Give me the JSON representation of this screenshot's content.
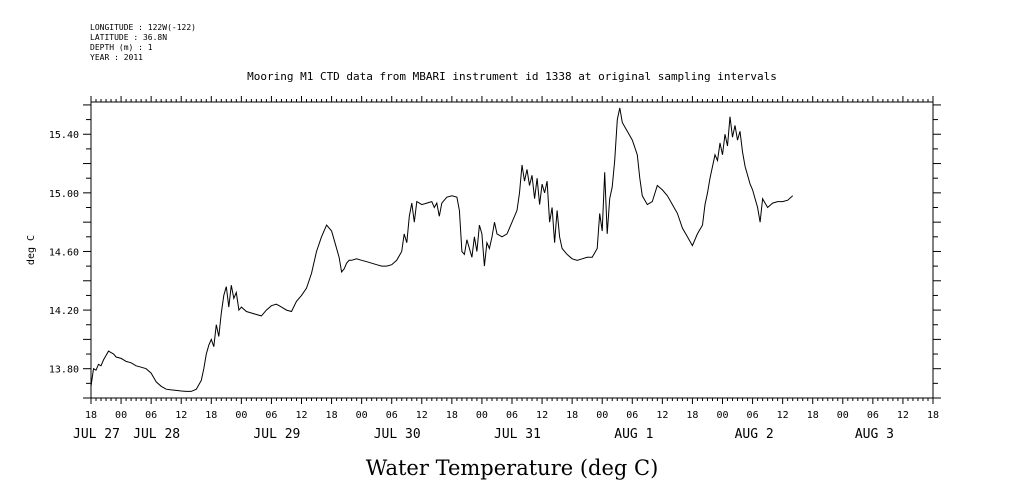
{
  "header": {
    "meta_lines": [
      "LONGITUDE : 122W(-122)",
      "LATITUDE : 36.8N",
      "DEPTH (m) : 1",
      "YEAR : 2011"
    ],
    "title": "Mooring M1 CTD data from MBARI instrument id 1338 at original sampling intervals"
  },
  "chart_data": {
    "type": "line",
    "title": "Mooring M1 CTD data from MBARI instrument id 1338 at original sampling intervals",
    "xlabel": "Water Temperature (deg C)",
    "ylabel": "deg C",
    "x_unit": "hours since 2011-07-27 18:00",
    "xlim": [
      0,
      168
    ],
    "ylim": [
      13.6,
      15.62
    ],
    "y_ticks": [
      13.8,
      14.2,
      14.6,
      15.0,
      15.4
    ],
    "y_tick_labels": [
      "13.80",
      "14.20",
      "14.60",
      "15.00",
      "15.40"
    ],
    "x_ticks": [
      0,
      6,
      12,
      18,
      24,
      30,
      36,
      42,
      48,
      54,
      60,
      66,
      72,
      78,
      84,
      90,
      96,
      102,
      108,
      114,
      120,
      126,
      132,
      138,
      144,
      150,
      156,
      162,
      168
    ],
    "x_tick_labels": [
      "18",
      "00",
      "06",
      "12",
      "18",
      "00",
      "06",
      "12",
      "18",
      "00",
      "06",
      "12",
      "18",
      "00",
      "06",
      "12",
      "18",
      "00",
      "06",
      "12",
      "18",
      "00",
      "06",
      "12",
      "18",
      "00",
      "06",
      "12",
      "18"
    ],
    "date_labels": [
      {
        "x": 0,
        "label": "JUL 27"
      },
      {
        "x": 12,
        "label": "JUL 28"
      },
      {
        "x": 36,
        "label": "JUL 29"
      },
      {
        "x": 60,
        "label": "JUL 30"
      },
      {
        "x": 84,
        "label": "JUL 31"
      },
      {
        "x": 108,
        "label": "AUG  1"
      },
      {
        "x": 132,
        "label": "AUG  2"
      },
      {
        "x": 156,
        "label": "AUG  3"
      }
    ],
    "series": [
      {
        "values": [
          [
            0,
            13.68
          ],
          [
            0.5,
            13.8
          ],
          [
            1,
            13.79
          ],
          [
            1.5,
            13.83
          ],
          [
            2,
            13.82
          ],
          [
            2.5,
            13.86
          ],
          [
            3,
            13.89
          ],
          [
            3.5,
            13.92
          ],
          [
            4,
            13.91
          ],
          [
            4.5,
            13.9
          ],
          [
            5,
            13.88
          ],
          [
            6,
            13.87
          ],
          [
            7,
            13.85
          ],
          [
            8,
            13.84
          ],
          [
            9,
            13.82
          ],
          [
            10,
            13.81
          ],
          [
            11,
            13.8
          ],
          [
            12,
            13.77
          ],
          [
            13,
            13.71
          ],
          [
            14,
            13.68
          ],
          [
            15,
            13.66
          ],
          [
            16,
            13.655
          ],
          [
            17,
            13.652
          ],
          [
            18,
            13.648
          ],
          [
            19,
            13.645
          ],
          [
            20,
            13.645
          ],
          [
            21,
            13.66
          ],
          [
            22,
            13.72
          ],
          [
            22.5,
            13.8
          ],
          [
            23,
            13.9
          ],
          [
            23.5,
            13.96
          ],
          [
            24,
            14.0
          ],
          [
            24.5,
            13.95
          ],
          [
            25,
            14.1
          ],
          [
            25.5,
            14.02
          ],
          [
            26,
            14.18
          ],
          [
            26.5,
            14.3
          ],
          [
            27,
            14.36
          ],
          [
            27.5,
            14.22
          ],
          [
            28,
            14.37
          ],
          [
            28.5,
            14.28
          ],
          [
            29,
            14.32
          ],
          [
            29.5,
            14.2
          ],
          [
            30,
            14.22
          ],
          [
            31,
            14.19
          ],
          [
            32,
            14.18
          ],
          [
            33,
            14.17
          ],
          [
            34,
            14.16
          ],
          [
            35,
            14.2
          ],
          [
            36,
            14.23
          ],
          [
            37,
            14.24
          ],
          [
            38,
            14.22
          ],
          [
            39,
            14.2
          ],
          [
            40,
            14.19
          ],
          [
            41,
            14.26
          ],
          [
            42,
            14.3
          ],
          [
            43,
            14.35
          ],
          [
            44,
            14.45
          ],
          [
            45,
            14.6
          ],
          [
            46,
            14.7
          ],
          [
            47,
            14.78
          ],
          [
            48,
            14.74
          ],
          [
            48.5,
            14.68
          ],
          [
            49,
            14.62
          ],
          [
            49.5,
            14.56
          ],
          [
            50,
            14.46
          ],
          [
            50.5,
            14.48
          ],
          [
            51,
            14.52
          ],
          [
            51.5,
            14.54
          ],
          [
            52,
            14.54
          ],
          [
            53,
            14.55
          ],
          [
            54,
            14.54
          ],
          [
            55,
            14.53
          ],
          [
            56,
            14.52
          ],
          [
            57,
            14.51
          ],
          [
            58,
            14.5
          ],
          [
            59,
            14.5
          ],
          [
            60,
            14.51
          ],
          [
            61,
            14.54
          ],
          [
            62,
            14.6
          ],
          [
            62.5,
            14.72
          ],
          [
            63,
            14.66
          ],
          [
            63.5,
            14.84
          ],
          [
            64,
            14.93
          ],
          [
            64.5,
            14.8
          ],
          [
            65,
            14.94
          ],
          [
            66,
            14.92
          ],
          [
            67,
            14.93
          ],
          [
            68,
            14.94
          ],
          [
            68.5,
            14.9
          ],
          [
            69,
            14.93
          ],
          [
            69.5,
            14.84
          ],
          [
            70,
            14.93
          ],
          [
            71,
            14.97
          ],
          [
            72,
            14.98
          ],
          [
            73,
            14.97
          ],
          [
            73.5,
            14.88
          ],
          [
            74,
            14.6
          ],
          [
            74.5,
            14.58
          ],
          [
            75,
            14.68
          ],
          [
            75.5,
            14.62
          ],
          [
            76,
            14.56
          ],
          [
            76.5,
            14.7
          ],
          [
            77,
            14.6
          ],
          [
            77.5,
            14.78
          ],
          [
            78,
            14.72
          ],
          [
            78.5,
            14.5
          ],
          [
            79,
            14.66
          ],
          [
            79.5,
            14.62
          ],
          [
            80,
            14.7
          ],
          [
            80.5,
            14.8
          ],
          [
            81,
            14.72
          ],
          [
            82,
            14.7
          ],
          [
            83,
            14.72
          ],
          [
            84,
            14.8
          ],
          [
            85,
            14.88
          ],
          [
            85.5,
            15.0
          ],
          [
            86,
            15.19
          ],
          [
            86.5,
            15.08
          ],
          [
            87,
            15.16
          ],
          [
            87.5,
            15.05
          ],
          [
            88,
            15.12
          ],
          [
            88.5,
            14.96
          ],
          [
            89,
            15.1
          ],
          [
            89.5,
            14.92
          ],
          [
            90,
            15.06
          ],
          [
            90.5,
            15.0
          ],
          [
            91,
            15.08
          ],
          [
            91.5,
            14.8
          ],
          [
            92,
            14.9
          ],
          [
            92.5,
            14.66
          ],
          [
            93,
            14.88
          ],
          [
            93.5,
            14.7
          ],
          [
            94,
            14.62
          ],
          [
            95,
            14.58
          ],
          [
            96,
            14.55
          ],
          [
            97,
            14.54
          ],
          [
            98,
            14.55
          ],
          [
            99,
            14.56
          ],
          [
            100,
            14.56
          ],
          [
            101,
            14.62
          ],
          [
            101.5,
            14.86
          ],
          [
            102,
            14.74
          ],
          [
            102.5,
            15.14
          ],
          [
            103,
            14.72
          ],
          [
            103.5,
            14.96
          ],
          [
            104,
            15.04
          ],
          [
            104.5,
            15.22
          ],
          [
            105,
            15.5
          ],
          [
            105.5,
            15.58
          ],
          [
            106,
            15.48
          ],
          [
            107,
            15.42
          ],
          [
            108,
            15.36
          ],
          [
            109,
            15.26
          ],
          [
            109.5,
            15.1
          ],
          [
            110,
            14.98
          ],
          [
            111,
            14.92
          ],
          [
            112,
            14.94
          ],
          [
            113,
            15.05
          ],
          [
            114,
            15.02
          ],
          [
            115,
            14.98
          ],
          [
            116,
            14.92
          ],
          [
            117,
            14.86
          ],
          [
            118,
            14.76
          ],
          [
            119,
            14.7
          ],
          [
            120,
            14.64
          ],
          [
            121,
            14.72
          ],
          [
            122,
            14.78
          ],
          [
            122.5,
            14.92
          ],
          [
            123,
            15.0
          ],
          [
            123.5,
            15.1
          ],
          [
            124,
            15.18
          ],
          [
            124.5,
            15.26
          ],
          [
            125,
            15.22
          ],
          [
            125.5,
            15.34
          ],
          [
            126,
            15.26
          ],
          [
            126.5,
            15.4
          ],
          [
            127,
            15.32
          ],
          [
            127.5,
            15.52
          ],
          [
            128,
            15.38
          ],
          [
            128.5,
            15.46
          ],
          [
            129,
            15.36
          ],
          [
            129.5,
            15.42
          ],
          [
            130,
            15.28
          ],
          [
            130.5,
            15.18
          ],
          [
            131,
            15.12
          ],
          [
            131.5,
            15.06
          ],
          [
            132,
            15.02
          ],
          [
            132.5,
            14.96
          ],
          [
            133,
            14.9
          ],
          [
            133.5,
            14.8
          ],
          [
            134,
            14.96
          ],
          [
            135,
            14.9
          ],
          [
            136,
            14.93
          ],
          [
            137,
            14.94
          ],
          [
            138,
            14.94
          ],
          [
            139,
            14.95
          ],
          [
            140,
            14.98
          ]
        ]
      }
    ],
    "grid": false,
    "legend": "none"
  }
}
